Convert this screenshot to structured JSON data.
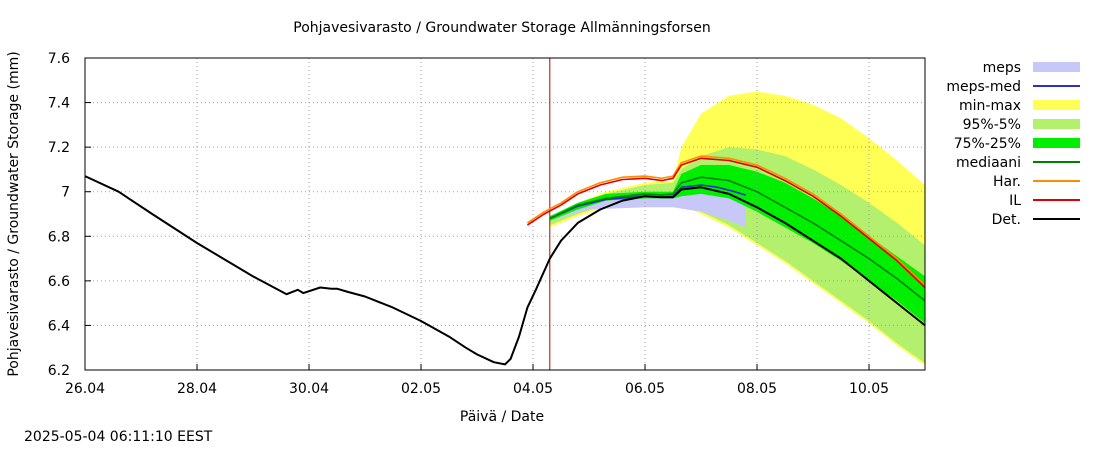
{
  "chart_data": {
    "type": "area",
    "title": "Pohjavesivarasto / Groundwater Storage   Allmänningsforsen",
    "xlabel": "Päivä / Date",
    "ylabel": "Pohjavesivarasto / Groundwater Storage (mm)",
    "x_tick_labels": [
      "26.04",
      "28.04",
      "30.04",
      "02.05",
      "04.05",
      "06.05",
      "08.05",
      "10.05"
    ],
    "y_tick_labels": [
      "6.2",
      "6.4",
      "6.6",
      "6.8",
      "7",
      "7.2",
      "7.4",
      "7.6"
    ],
    "y_ticks": [
      6.2,
      6.4,
      6.6,
      6.8,
      7.0,
      7.2,
      7.4,
      7.6
    ],
    "ylim": [
      6.2,
      7.6
    ],
    "grid": true,
    "legend_position": "right",
    "forecast_marker_day": 8.3,
    "x_days": [
      0,
      2,
      4,
      6,
      8,
      10,
      12,
      14
    ],
    "series": [
      {
        "name": "Det.",
        "color": "#000000",
        "kind": "line",
        "x": [
          0,
          0.6,
          1.2,
          2,
          3,
          3.6,
          3.8,
          3.9,
          4.2,
          4.4,
          4.5,
          4.7,
          5,
          5.5,
          6,
          6.5,
          6.8,
          7,
          7.3,
          7.5,
          7.6,
          7.75,
          7.9,
          8.05,
          8.3,
          8.5,
          8.8,
          9.2,
          9.6,
          10,
          10.3,
          10.5,
          10.65,
          11,
          11.5,
          12,
          12.5,
          13,
          13.5,
          14,
          14.5,
          15
        ],
        "y": [
          7.07,
          7.0,
          6.9,
          6.77,
          6.62,
          6.54,
          6.56,
          6.545,
          6.57,
          6.565,
          6.565,
          6.55,
          6.53,
          6.48,
          6.42,
          6.35,
          6.3,
          6.27,
          6.235,
          6.225,
          6.25,
          6.35,
          6.48,
          6.56,
          6.7,
          6.78,
          6.86,
          6.92,
          6.96,
          6.98,
          6.975,
          6.975,
          7.01,
          7.02,
          6.99,
          6.93,
          6.86,
          6.78,
          6.7,
          6.6,
          6.5,
          6.4
        ]
      },
      {
        "name": "IL",
        "color": "#e00000",
        "kind": "line",
        "x": [
          7.9,
          8.2,
          8.5,
          8.8,
          9.2,
          9.6,
          10,
          10.3,
          10.5,
          10.65,
          11,
          11.5,
          12,
          12.5,
          13,
          13.5,
          14,
          14.5,
          15
        ],
        "y": [
          6.85,
          6.9,
          6.94,
          6.99,
          7.03,
          7.055,
          7.06,
          7.05,
          7.06,
          7.12,
          7.15,
          7.14,
          7.11,
          7.05,
          6.98,
          6.89,
          6.79,
          6.69,
          6.57
        ]
      },
      {
        "name": "Har.",
        "color": "#ff8c00",
        "kind": "line",
        "x": [
          7.9,
          8.2,
          8.5,
          8.8,
          9.2,
          9.6,
          10,
          10.3,
          10.5,
          10.65,
          11,
          11.5,
          12,
          12.5,
          13,
          13.5,
          14,
          14.5,
          15
        ],
        "y": [
          6.86,
          6.91,
          6.95,
          7.0,
          7.04,
          7.065,
          7.07,
          7.06,
          7.07,
          7.13,
          7.16,
          7.15,
          7.12,
          7.06,
          6.99,
          6.9,
          6.8,
          6.7,
          6.58
        ]
      },
      {
        "name": "mediaani",
        "color": "#008000",
        "kind": "line",
        "x": [
          8.3,
          8.8,
          9.3,
          10,
          10.3,
          10.5,
          10.65,
          11,
          11.5,
          12,
          12.5,
          13,
          13.5,
          14,
          14.5,
          15
        ],
        "y": [
          6.88,
          6.94,
          6.97,
          6.99,
          6.985,
          6.99,
          7.04,
          7.065,
          7.05,
          7.0,
          6.93,
          6.86,
          6.78,
          6.7,
          6.61,
          6.51
        ]
      },
      {
        "name": "meps-med",
        "color": "#3030c0",
        "kind": "line",
        "x": [
          8.3,
          8.8,
          9.3,
          10,
          10.3,
          10.5,
          10.65,
          11,
          11.3,
          11.6,
          11.8
        ],
        "y": [
          6.88,
          6.935,
          6.965,
          6.98,
          6.975,
          6.98,
          7.02,
          7.03,
          7.02,
          7.0,
          6.985
        ]
      },
      {
        "name": "meps",
        "color": "#c8c8f8",
        "kind": "band",
        "x": [
          8.3,
          9,
          10,
          10.5,
          11,
          11.5,
          11.8
        ],
        "lower": [
          6.87,
          6.92,
          6.93,
          6.93,
          6.91,
          6.87,
          6.84
        ],
        "upper": [
          6.89,
          6.96,
          6.99,
          7.0,
          7.04,
          7.03,
          7.01
        ]
      },
      {
        "name": "min-max",
        "color": "#ffff55",
        "kind": "band",
        "x": [
          8.3,
          8.8,
          9.3,
          10,
          10.5,
          10.65,
          11,
          11.5,
          12,
          12.5,
          13,
          13.5,
          14,
          14.5,
          15
        ],
        "lower": [
          6.84,
          6.89,
          6.93,
          6.95,
          6.95,
          6.94,
          6.9,
          6.84,
          6.76,
          6.68,
          6.59,
          6.5,
          6.41,
          6.31,
          6.22
        ],
        "upper": [
          6.89,
          6.95,
          7.0,
          7.04,
          7.05,
          7.2,
          7.35,
          7.43,
          7.45,
          7.43,
          7.39,
          7.33,
          7.24,
          7.14,
          7.03
        ]
      },
      {
        "name": "95%-5%",
        "color": "#b2f06e",
        "kind": "band",
        "x": [
          8.3,
          8.8,
          9.3,
          10,
          10.5,
          10.65,
          11,
          11.5,
          12,
          12.5,
          13,
          13.5,
          14,
          14.5,
          15
        ],
        "lower": [
          6.85,
          6.9,
          6.94,
          6.95,
          6.95,
          6.94,
          6.91,
          6.85,
          6.77,
          6.69,
          6.6,
          6.51,
          6.42,
          6.32,
          6.23
        ],
        "upper": [
          6.89,
          6.95,
          6.99,
          7.03,
          7.04,
          7.1,
          7.16,
          7.2,
          7.19,
          7.16,
          7.1,
          7.03,
          6.95,
          6.86,
          6.76
        ]
      },
      {
        "name": "75%-25%",
        "color": "#00ee00",
        "kind": "band",
        "x": [
          8.3,
          8.8,
          9.3,
          10,
          10.5,
          10.65,
          11,
          11.5,
          12,
          12.5,
          13,
          13.5,
          14,
          14.5,
          15
        ],
        "lower": [
          6.87,
          6.92,
          6.96,
          6.97,
          6.97,
          6.98,
          6.99,
          6.97,
          6.91,
          6.84,
          6.77,
          6.69,
          6.6,
          6.51,
          6.41
        ],
        "upper": [
          6.89,
          6.95,
          6.99,
          7.0,
          7.0,
          7.08,
          7.12,
          7.12,
          7.09,
          7.04,
          6.97,
          6.89,
          6.8,
          6.71,
          6.62
        ]
      }
    ]
  },
  "legend": [
    {
      "label": "meps",
      "color": "#c8c8f8",
      "kind": "box"
    },
    {
      "label": "meps-med",
      "color": "#3030c0",
      "kind": "line"
    },
    {
      "label": "min-max",
      "color": "#ffff55",
      "kind": "box"
    },
    {
      "label": "95%-5%",
      "color": "#b2f06e",
      "kind": "box"
    },
    {
      "label": "75%-25%",
      "color": "#00ee00",
      "kind": "box"
    },
    {
      "label": "mediaani",
      "color": "#008000",
      "kind": "line"
    },
    {
      "label": "Har.",
      "color": "#ff8c00",
      "kind": "line"
    },
    {
      "label": "IL",
      "color": "#e00000",
      "kind": "line"
    },
    {
      "label": "Det.",
      "color": "#000000",
      "kind": "line"
    }
  ],
  "timestamp": "2025-05-04 06:11:10 EEST",
  "marker_color": "#c00000"
}
